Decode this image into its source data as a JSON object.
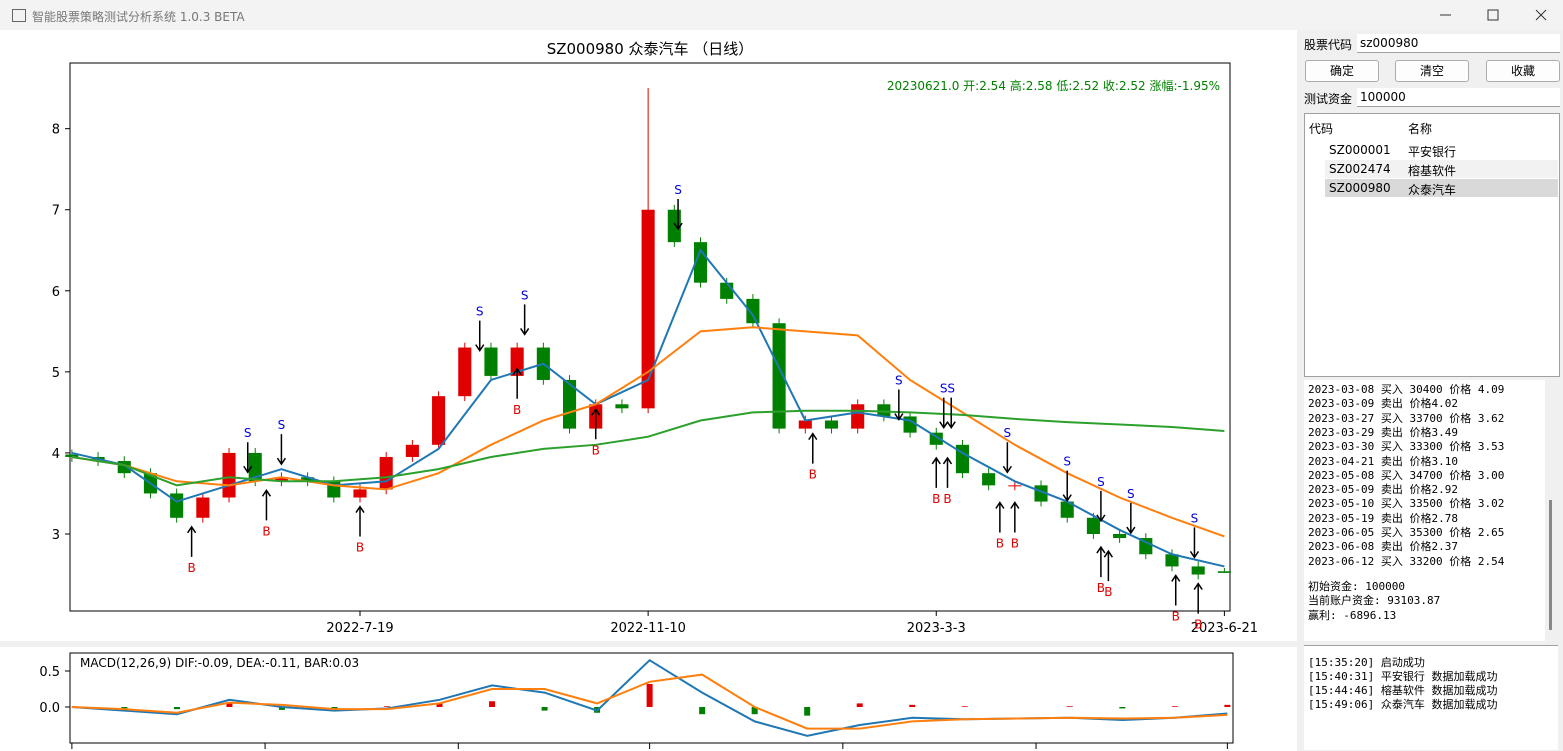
{
  "window": {
    "title": "智能股票策略测试分析系统 1.0.3 BETA"
  },
  "chart_data": [
    {
      "type": "candlestick",
      "title": "SZ000980 众泰汽车 （日线）",
      "info": "20230621.0 开:2.54 高:2.58 低:2.52 收:2.52 涨幅:-1.95%",
      "xlim": [
        -0.5,
        309.5
      ],
      "ylim": [
        2.05,
        8.81
      ],
      "yticks": [
        3,
        4,
        5,
        6,
        7,
        8
      ],
      "xticks": [
        {
          "value": 77,
          "label": "2022-7-19"
        },
        {
          "value": 154,
          "label": "2022-11-10"
        },
        {
          "value": 231,
          "label": "2023-3-3"
        },
        {
          "value": 308,
          "label": "2023-6-21"
        }
      ],
      "up_color": "#e00000",
      "down_color": "#008000",
      "x": [
        0,
        7,
        14,
        21,
        28,
        35,
        42,
        49,
        56,
        63,
        70,
        77,
        84,
        91,
        98,
        105,
        112,
        119,
        126,
        133,
        140,
        147,
        154,
        161,
        168,
        175,
        182,
        189,
        196,
        203,
        210,
        217,
        224,
        231,
        238,
        245,
        252,
        259,
        266,
        273,
        280,
        287,
        294,
        301,
        308
      ],
      "open": [
        3.98,
        3.95,
        3.9,
        3.75,
        3.5,
        3.2,
        3.45,
        4.0,
        3.65,
        3.7,
        3.65,
        3.45,
        3.55,
        3.95,
        4.1,
        4.7,
        5.3,
        4.95,
        5.3,
        4.9,
        4.3,
        4.6,
        4.55,
        7.0,
        6.6,
        6.1,
        5.9,
        5.6,
        4.3,
        4.4,
        4.3,
        4.6,
        4.45,
        4.25,
        4.1,
        3.75,
        3.6,
        3.6,
        3.4,
        3.2,
        3.0,
        2.95,
        2.75,
        2.6,
        2.54
      ],
      "high": [
        4.04,
        4.01,
        3.96,
        3.81,
        3.56,
        3.51,
        4.06,
        4.06,
        3.76,
        3.76,
        3.71,
        3.61,
        4.01,
        4.16,
        4.76,
        5.36,
        5.36,
        5.36,
        5.36,
        4.96,
        4.66,
        4.66,
        8.5,
        7.06,
        6.66,
        6.16,
        5.96,
        5.66,
        4.46,
        4.46,
        4.66,
        4.66,
        4.51,
        4.31,
        4.16,
        3.81,
        3.66,
        3.66,
        3.46,
        3.26,
        3.06,
        3.01,
        2.81,
        2.66,
        2.58
      ],
      "low": [
        3.89,
        3.84,
        3.69,
        3.44,
        3.14,
        3.14,
        3.39,
        3.59,
        3.59,
        3.59,
        3.39,
        3.39,
        3.49,
        3.89,
        4.04,
        4.64,
        4.89,
        4.89,
        4.84,
        4.24,
        4.24,
        4.49,
        4.49,
        6.54,
        6.04,
        5.84,
        5.54,
        4.24,
        4.24,
        4.24,
        4.24,
        4.39,
        4.19,
        4.04,
        3.69,
        3.54,
        3.54,
        3.34,
        3.14,
        2.94,
        2.89,
        2.69,
        2.54,
        2.44,
        2.52
      ],
      "close": [
        3.95,
        3.9,
        3.75,
        3.5,
        3.2,
        3.45,
        4.0,
        3.65,
        3.7,
        3.65,
        3.45,
        3.55,
        3.95,
        4.1,
        4.7,
        5.3,
        4.95,
        5.3,
        4.9,
        4.3,
        4.6,
        4.55,
        7.0,
        6.6,
        6.1,
        5.9,
        5.6,
        4.3,
        4.4,
        4.3,
        4.6,
        4.45,
        4.25,
        4.1,
        3.75,
        3.6,
        3.6,
        3.4,
        3.2,
        3.0,
        2.95,
        2.75,
        2.6,
        2.5,
        2.52
      ],
      "series": [
        {
          "color": "#1f77b4",
          "x": [
            0,
            14,
            28,
            42,
            56,
            70,
            84,
            98,
            112,
            126,
            140,
            154,
            168,
            182,
            196,
            210,
            224,
            238,
            252,
            266,
            280,
            294,
            308
          ],
          "values": [
            4.0,
            3.85,
            3.4,
            3.6,
            3.8,
            3.6,
            3.65,
            4.05,
            4.9,
            5.1,
            4.6,
            4.9,
            6.5,
            5.7,
            4.4,
            4.5,
            4.4,
            4.0,
            3.65,
            3.4,
            3.05,
            2.75,
            2.6
          ]
        },
        {
          "color": "#ff7f0e",
          "x": [
            0,
            14,
            28,
            42,
            56,
            70,
            84,
            98,
            112,
            126,
            140,
            154,
            168,
            182,
            196,
            210,
            224,
            238,
            252,
            266,
            280,
            294,
            308
          ],
          "values": [
            3.95,
            3.85,
            3.65,
            3.6,
            3.7,
            3.6,
            3.55,
            3.75,
            4.1,
            4.4,
            4.6,
            5.0,
            5.5,
            5.55,
            5.5,
            5.45,
            4.9,
            4.5,
            4.1,
            3.75,
            3.45,
            3.2,
            2.97
          ]
        },
        {
          "color": "#2ca02c",
          "x": [
            0,
            14,
            28,
            42,
            56,
            70,
            84,
            98,
            112,
            126,
            140,
            154,
            168,
            182,
            196,
            210,
            224,
            238,
            252,
            266,
            280,
            294,
            308
          ],
          "values": [
            3.95,
            3.85,
            3.6,
            3.7,
            3.65,
            3.65,
            3.7,
            3.8,
            3.95,
            4.05,
            4.1,
            4.2,
            4.4,
            4.5,
            4.52,
            4.52,
            4.5,
            4.47,
            4.42,
            4.38,
            4.35,
            4.32,
            4.27
          ]
        }
      ],
      "signals": [
        {
          "label": "B",
          "x": 32,
          "y": 3.15
        },
        {
          "label": "B",
          "x": 52,
          "y": 3.6
        },
        {
          "label": "B",
          "x": 77,
          "y": 3.4
        },
        {
          "label": "B",
          "x": 119,
          "y": 5.1
        },
        {
          "label": "B",
          "x": 140,
          "y": 4.6
        },
        {
          "label": "B",
          "x": 198,
          "y": 4.3
        },
        {
          "label": "B",
          "x": 231,
          "y": 4.0
        },
        {
          "label": "B",
          "x": 234,
          "y": 4.0
        },
        {
          "label": "B",
          "x": 248,
          "y": 3.45
        },
        {
          "label": "B",
          "x": 252,
          "y": 3.45
        },
        {
          "label": "B",
          "x": 275,
          "y": 2.9
        },
        {
          "label": "B",
          "x": 277,
          "y": 2.85
        },
        {
          "label": "B",
          "x": 295,
          "y": 2.55
        },
        {
          "label": "B",
          "x": 301,
          "y": 2.45
        },
        {
          "label": "S",
          "x": 47,
          "y": 3.7
        },
        {
          "label": "S",
          "x": 56,
          "y": 3.8
        },
        {
          "label": "S",
          "x": 109,
          "y": 5.2
        },
        {
          "label": "S",
          "x": 121,
          "y": 5.4
        },
        {
          "label": "S",
          "x": 162,
          "y": 6.7
        },
        {
          "label": "S",
          "x": 221,
          "y": 4.35
        },
        {
          "label": "S",
          "x": 233,
          "y": 4.25
        },
        {
          "label": "S",
          "x": 235,
          "y": 4.25
        },
        {
          "label": "S",
          "x": 250,
          "y": 3.7
        },
        {
          "label": "S",
          "x": 266,
          "y": 3.35
        },
        {
          "label": "S",
          "x": 275,
          "y": 3.1
        },
        {
          "label": "S",
          "x": 283,
          "y": 2.95
        },
        {
          "label": "S",
          "x": 300,
          "y": 2.65
        }
      ]
    },
    {
      "type": "macd",
      "info": "MACD(12,26,9) DIF:-0.09, DEA:-0.11, BAR:0.03",
      "xlim": [
        -0.5,
        309.5
      ],
      "ylim": [
        -0.5,
        0.75
      ],
      "yticks": [
        {
          "value": 0,
          "label": "0.0"
        },
        0.5
      ],
      "xticks": [
        0,
        51.5,
        103,
        154,
        205.5,
        257,
        308
      ],
      "x": [
        0,
        14,
        28,
        42,
        56,
        70,
        84,
        98,
        112,
        126,
        140,
        154,
        168,
        182,
        196,
        210,
        224,
        238,
        252,
        266,
        280,
        294,
        308
      ],
      "bar": [
        0,
        -0.02,
        -0.03,
        0.07,
        -0.04,
        -0.03,
        0.01,
        0.05,
        0.08,
        -0.05,
        -0.08,
        0.32,
        -0.1,
        -0.1,
        -0.12,
        0.05,
        0.03,
        0.01,
        0.0,
        0.01,
        -0.02,
        0.01,
        0.03
      ],
      "up_color": "#e00000",
      "down_color": "#008000",
      "series": [
        {
          "color": "#1f77b4",
          "values": [
            0,
            -0.05,
            -0.1,
            0.1,
            0.0,
            -0.05,
            -0.02,
            0.1,
            0.3,
            0.2,
            -0.05,
            0.65,
            0.2,
            -0.2,
            -0.4,
            -0.25,
            -0.15,
            -0.17,
            -0.16,
            -0.15,
            -0.18,
            -0.15,
            -0.09
          ]
        },
        {
          "color": "#ff7f0e",
          "values": [
            0,
            -0.03,
            -0.08,
            0.06,
            0.03,
            -0.03,
            -0.03,
            0.05,
            0.25,
            0.25,
            0.05,
            0.35,
            0.45,
            0.0,
            -0.3,
            -0.3,
            -0.2,
            -0.17,
            -0.16,
            -0.15,
            -0.16,
            -0.15,
            -0.11
          ]
        }
      ]
    }
  ],
  "panel": {
    "code_label": "股票代码",
    "code_value": "sz000980",
    "buttons": [
      "确定",
      "清空",
      "收藏"
    ],
    "fund_label": "测试资金",
    "fund_value": "100000",
    "table": {
      "header": [
        "代码",
        "名称"
      ],
      "rows": [
        [
          "SZ000001",
          "平安银行"
        ],
        [
          "SZ002474",
          "榕基软件"
        ],
        [
          "SZ000980",
          "众泰汽车"
        ]
      ]
    },
    "trades": [
      "2023-03-08 买入 30400 价格 4.09",
      "2023-03-09 卖出 价格4.02",
      "2023-03-27 买入 33700 价格 3.62",
      "2023-03-29 卖出 价格3.49",
      "2023-03-30 买入 33300 价格 3.53",
      "2023-04-21 卖出 价格3.10",
      "2023-05-08 买入 34700 价格 3.00",
      "2023-05-09 卖出 价格2.92",
      "2023-05-10 买入 33500 价格 3.02",
      "2023-05-19 卖出 价格2.78",
      "2023-06-05 买入 35300 价格 2.65",
      "2023-06-08 卖出 价格2.37",
      "2023-06-12 买入 33200 价格 2.54"
    ],
    "stats": [
      "初始资金: 100000",
      "当前账户资金: 93103.87",
      "赢利: -6896.13"
    ],
    "log": [
      "[15:35:20] 启动成功",
      "[15:40:31] 平安银行 数据加载成功",
      "[15:44:46] 榕基软件 数据加载成功",
      "[15:49:06] 众泰汽车 数据加载成功"
    ]
  }
}
